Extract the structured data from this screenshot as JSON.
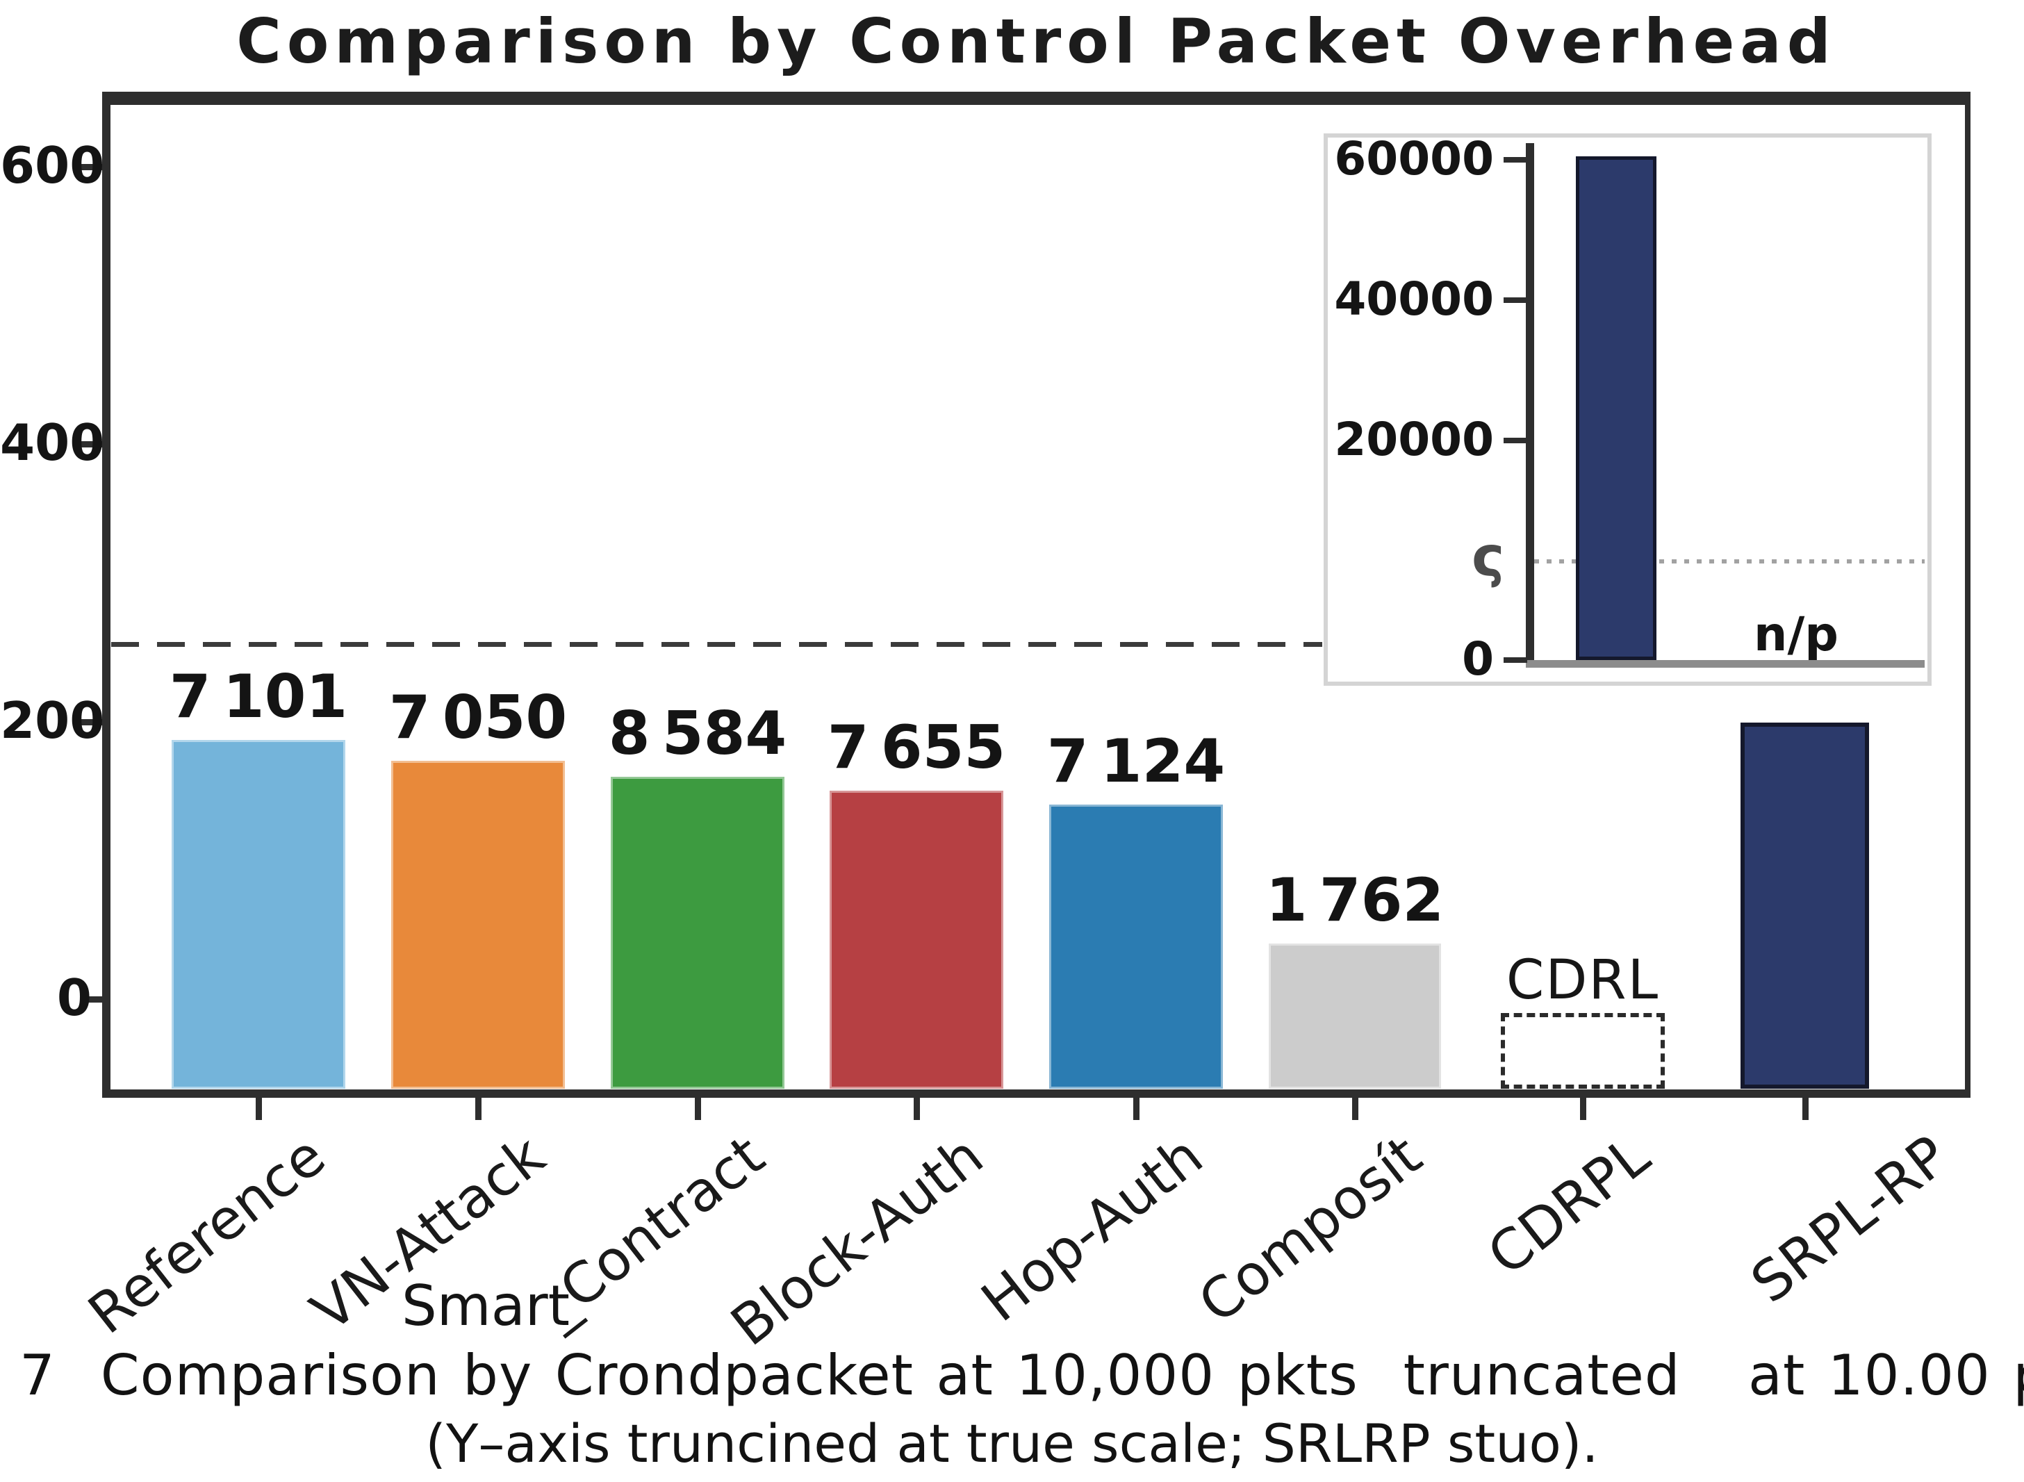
{
  "title": "Comparison by Control Packet Overhead",
  "caption": {
    "line1": "7  Comparison by Crondpacket at 10,000 pkts  truncated   at 10.00 p",
    "line2": "(Y–axis truncined at true scale; SRLRP stuo)."
  },
  "colors": {
    "reference": "#74b4da",
    "vn_attack": "#e8893a",
    "smart_contract": "#3d9b40",
    "block_auth": "#b64043",
    "hop_auth": "#2b7cb2",
    "composit": "#cccccc",
    "cdrpl": "none",
    "srpl_rp": "#2c3a6b",
    "axis": "#2e2e2e",
    "inset_border": "#d4d4d4"
  },
  "chart_data": {
    "type": "bar",
    "title": "Comparison by Control Packet Overhead",
    "categories": [
      "Reference",
      "VN-Attack",
      "Smart_Contract",
      "Block-Auth",
      "Hop-Auth",
      "Composít",
      "CDRPL",
      "SRPL-RP"
    ],
    "values": [
      7101,
      7050,
      8584,
      7655,
      7124,
      1762,
      null,
      60000
    ],
    "value_labels": [
      "7 101",
      "7 050",
      "8 584",
      "7 655",
      "7 124",
      "1 762",
      "",
      ""
    ],
    "bar_colors": [
      "#74b4da",
      "#e8893a",
      "#3d9b40",
      "#b64043",
      "#2b7cb2",
      "#cccccc",
      "none",
      "#2c3a6b"
    ],
    "y_axis": {
      "tick_labels": [
        "600",
        "400",
        "200",
        "0"
      ]
    },
    "x_axis": {
      "labels": [
        {
          "rotated": "Reference"
        },
        {
          "rotated": "VN-Attack"
        },
        {
          "rotated": "_Contract",
          "horizontal": "Smart"
        },
        {
          "rotated": "Block-Auth"
        },
        {
          "rotated": "Hop-Auth"
        },
        {
          "rotated": "Composít"
        },
        {
          "rotated": "CDRPL"
        },
        {
          "rotated": "SRPL-RP"
        }
      ]
    },
    "annotations": {
      "cdrl_label": "CDRL",
      "na_label": "n/p",
      "dashed_reference_line": true
    },
    "inset": {
      "type": "bar",
      "y_tick_labels": [
        "60000",
        "40000",
        "20000",
        "0"
      ],
      "axis_break_symbol": "ς",
      "categories": [
        "SRPL-RP",
        "n/p"
      ],
      "values": [
        60000,
        null
      ],
      "bar_color": "#2c3a6b",
      "dotted_line": true,
      "legend": "none"
    }
  }
}
